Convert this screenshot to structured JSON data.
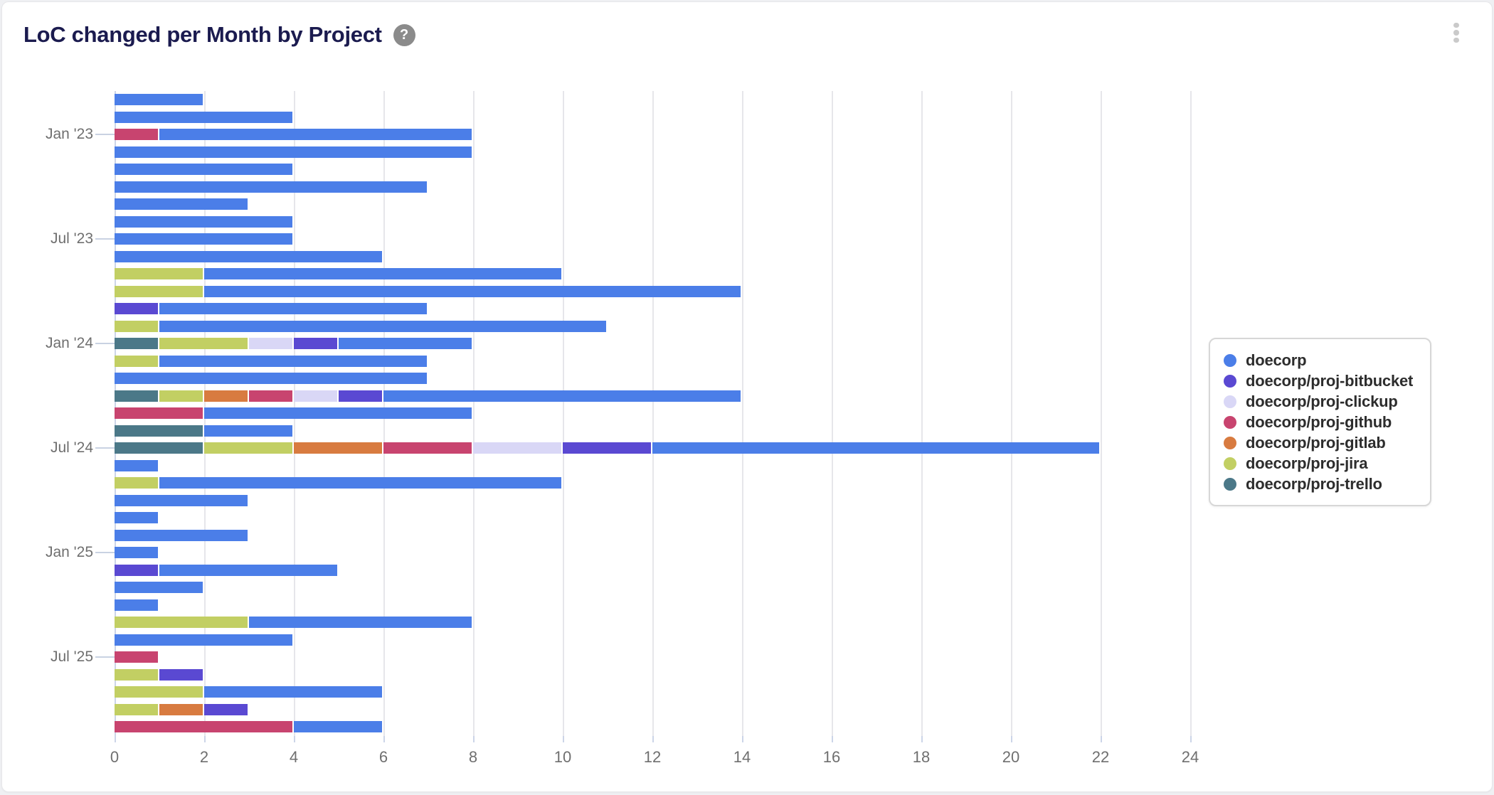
{
  "header": {
    "title": "LoC changed per Month by Project",
    "help_icon_glyph": "?"
  },
  "chart_data": {
    "type": "bar",
    "orientation": "horizontal",
    "stacked": true,
    "title": "LoC changed per Month by Project",
    "xlabel": "",
    "ylabel": "",
    "grid": true,
    "legend_position": "right",
    "xlim": [
      0,
      24.6
    ],
    "x_ticks": [
      0,
      2,
      4,
      6,
      8,
      10,
      12,
      14,
      16,
      18,
      20,
      22,
      24
    ],
    "y_tick_labels": [
      "Jan '23",
      "Jul '23",
      "Jan '24",
      "Jul '24",
      "Jan '25",
      "Jul '25"
    ],
    "y_tick_indices": [
      2,
      8,
      14,
      20,
      26,
      32
    ],
    "categories": [
      "Nov '22",
      "Dec '22",
      "Jan '23",
      "Feb '23",
      "Mar '23",
      "Apr '23",
      "May '23",
      "Jun '23",
      "Jul '23",
      "Aug '23",
      "Sep '23",
      "Oct '23",
      "Nov '23",
      "Dec '23",
      "Jan '24",
      "Feb '24",
      "Mar '24",
      "Apr '24",
      "May '24",
      "Jun '24",
      "Jul '24",
      "Aug '24",
      "Sep '24",
      "Oct '24",
      "Nov '24",
      "Dec '24",
      "Jan '25",
      "Feb '25",
      "Mar '25",
      "Apr '25",
      "May '25",
      "Jun '25",
      "Jul '25",
      "Aug '25",
      "Sep '25",
      "Oct '25",
      "Nov '25"
    ],
    "series": [
      {
        "name": "doecorp/proj-trello",
        "color": "#4b7888",
        "values": [
          0,
          0,
          0,
          0,
          0,
          0,
          0,
          0,
          0,
          0,
          0,
          0,
          0,
          0,
          1,
          0,
          0,
          1,
          0,
          2,
          2,
          0,
          0,
          0,
          0,
          0,
          0,
          0,
          0,
          0,
          0,
          0,
          0,
          0,
          0,
          0,
          0
        ]
      },
      {
        "name": "doecorp/proj-jira",
        "color": "#c2cf63",
        "values": [
          0,
          0,
          0,
          0,
          0,
          0,
          0,
          0,
          0,
          0,
          2,
          2,
          0,
          1,
          2,
          1,
          0,
          1,
          0,
          0,
          2,
          0,
          1,
          0,
          0,
          0,
          0,
          0,
          0,
          0,
          3,
          0,
          0,
          1,
          2,
          1,
          0
        ]
      },
      {
        "name": "doecorp/proj-gitlab",
        "color": "#d87b40",
        "values": [
          0,
          0,
          0,
          0,
          0,
          0,
          0,
          0,
          0,
          0,
          0,
          0,
          0,
          0,
          0,
          0,
          0,
          1,
          0,
          0,
          2,
          0,
          0,
          0,
          0,
          0,
          0,
          0,
          0,
          0,
          0,
          0,
          0,
          0,
          0,
          1,
          0
        ]
      },
      {
        "name": "doecorp/proj-github",
        "color": "#c8446f",
        "values": [
          0,
          0,
          1,
          0,
          0,
          0,
          0,
          0,
          0,
          0,
          0,
          0,
          0,
          0,
          0,
          0,
          0,
          1,
          2,
          0,
          2,
          0,
          0,
          0,
          0,
          0,
          0,
          0,
          0,
          0,
          0,
          0,
          1,
          0,
          0,
          0,
          4
        ]
      },
      {
        "name": "doecorp/proj-clickup",
        "color": "#d9d7f6",
        "values": [
          0,
          0,
          0,
          0,
          0,
          0,
          0,
          0,
          0,
          0,
          0,
          0,
          0,
          0,
          1,
          0,
          0,
          1,
          0,
          0,
          2,
          0,
          0,
          0,
          0,
          0,
          0,
          0,
          0,
          0,
          0,
          0,
          0,
          0,
          0,
          0,
          0
        ]
      },
      {
        "name": "doecorp/proj-bitbucket",
        "color": "#5a49d2",
        "values": [
          0,
          0,
          0,
          0,
          0,
          0,
          0,
          0,
          0,
          0,
          0,
          0,
          1,
          0,
          1,
          0,
          0,
          1,
          0,
          0,
          2,
          0,
          0,
          0,
          0,
          0,
          0,
          1,
          0,
          0,
          0,
          0,
          0,
          1,
          0,
          1,
          0
        ]
      },
      {
        "name": "doecorp",
        "color": "#4b7ee8",
        "values": [
          2,
          4,
          7,
          8,
          4,
          7,
          3,
          4,
          4,
          6,
          8,
          12,
          6,
          10,
          3,
          6,
          7,
          8,
          6,
          2,
          10,
          1,
          9,
          3,
          1,
          3,
          1,
          4,
          2,
          1,
          5,
          4,
          0,
          0,
          4,
          0,
          2
        ]
      }
    ],
    "legend_order": [
      "doecorp",
      "doecorp/proj-bitbucket",
      "doecorp/proj-clickup",
      "doecorp/proj-github",
      "doecorp/proj-gitlab",
      "doecorp/proj-jira",
      "doecorp/proj-trello"
    ]
  }
}
